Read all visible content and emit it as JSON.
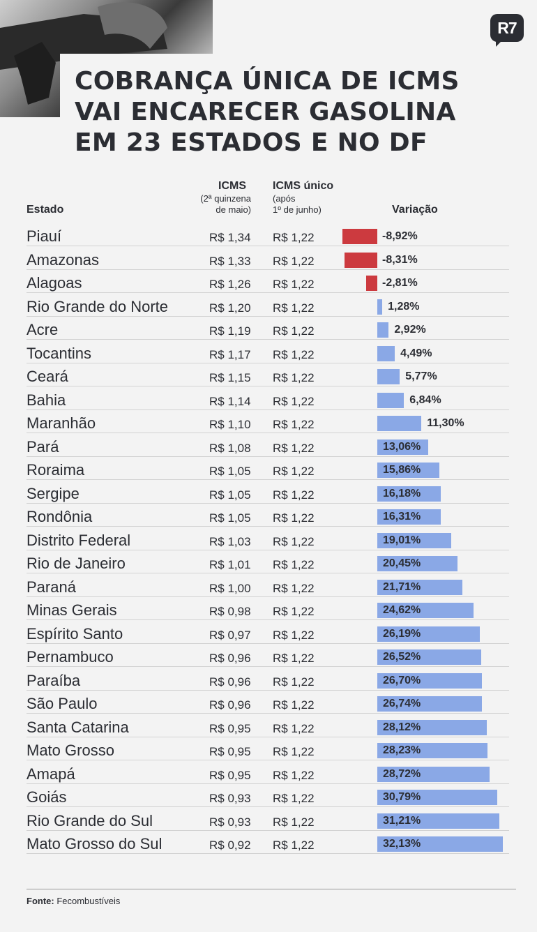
{
  "brand": {
    "logo_text": "R7"
  },
  "title": {
    "lines": [
      "COBRANÇA ÚNICA DE ICMS",
      "VAI ENCARECER GASOLINA",
      "EM 23 ESTADOS E NO DF"
    ]
  },
  "headers": {
    "estado": "Estado",
    "icms": "ICMS",
    "icms_sub1": "(2ª quinzena",
    "icms_sub2": "de maio)",
    "icms_unico": "ICMS único",
    "icms_unico_sub1": "(após",
    "icms_unico_sub2": "1º de junho)",
    "variacao": "Variação"
  },
  "colors": {
    "negative": "#cc3a3f",
    "positive": "#8aa8e6",
    "text": "#2b2d33"
  },
  "chart_data": {
    "type": "bar",
    "title": "COBRANÇA ÚNICA DE ICMS VAI ENCARECER GASOLINA EM 23 ESTADOS E NO DF",
    "columns": [
      "Estado",
      "ICMS (2ª quinzena de maio)",
      "ICMS único (após 1º de junho)",
      "Variação"
    ],
    "rows": [
      {
        "estado": "Piauí",
        "icms": "R$ 1,34",
        "icms_unico": "R$ 1,22",
        "label": "-8,92%",
        "value": -8.92
      },
      {
        "estado": "Amazonas",
        "icms": "R$ 1,33",
        "icms_unico": "R$ 1,22",
        "label": "-8,31%",
        "value": -8.31
      },
      {
        "estado": "Alagoas",
        "icms": "R$ 1,26",
        "icms_unico": "R$ 1,22",
        "label": "-2,81%",
        "value": -2.81
      },
      {
        "estado": "Rio Grande do Norte",
        "icms": "R$ 1,20",
        "icms_unico": "R$ 1,22",
        "label": "1,28%",
        "value": 1.28
      },
      {
        "estado": "Acre",
        "icms": "R$ 1,19",
        "icms_unico": "R$ 1,22",
        "label": "2,92%",
        "value": 2.92
      },
      {
        "estado": "Tocantins",
        "icms": "R$ 1,17",
        "icms_unico": "R$ 1,22",
        "label": "4,49%",
        "value": 4.49
      },
      {
        "estado": "Ceará",
        "icms": "R$ 1,15",
        "icms_unico": "R$ 1,22",
        "label": "5,77%",
        "value": 5.77
      },
      {
        "estado": "Bahia",
        "icms": "R$ 1,14",
        "icms_unico": "R$ 1,22",
        "label": "6,84%",
        "value": 6.84
      },
      {
        "estado": "Maranhão",
        "icms": "R$ 1,10",
        "icms_unico": "R$ 1,22",
        "label": "11,30%",
        "value": 11.3
      },
      {
        "estado": "Pará",
        "icms": "R$ 1,08",
        "icms_unico": "R$ 1,22",
        "label": "13,06%",
        "value": 13.06
      },
      {
        "estado": "Roraima",
        "icms": "R$ 1,05",
        "icms_unico": "R$ 1,22",
        "label": "15,86%",
        "value": 15.86
      },
      {
        "estado": "Sergipe",
        "icms": "R$ 1,05",
        "icms_unico": "R$ 1,22",
        "label": "16,18%",
        "value": 16.18
      },
      {
        "estado": "Rondônia",
        "icms": "R$ 1,05",
        "icms_unico": "R$ 1,22",
        "label": "16,31%",
        "value": 16.31
      },
      {
        "estado": "Distrito Federal",
        "icms": "R$ 1,03",
        "icms_unico": "R$ 1,22",
        "label": "19,01%",
        "value": 19.01
      },
      {
        "estado": "Rio de Janeiro",
        "icms": "R$ 1,01",
        "icms_unico": "R$ 1,22",
        "label": "20,45%",
        "value": 20.45
      },
      {
        "estado": "Paraná",
        "icms": "R$ 1,00",
        "icms_unico": "R$ 1,22",
        "label": "21,71%",
        "value": 21.71
      },
      {
        "estado": "Minas Gerais",
        "icms": "R$ 0,98",
        "icms_unico": "R$ 1,22",
        "label": "24,62%",
        "value": 24.62
      },
      {
        "estado": "Espírito Santo",
        "icms": "R$ 0,97",
        "icms_unico": "R$ 1,22",
        "label": "26,19%",
        "value": 26.19
      },
      {
        "estado": "Pernambuco",
        "icms": "R$ 0,96",
        "icms_unico": "R$ 1,22",
        "label": "26,52%",
        "value": 26.52
      },
      {
        "estado": "Paraíba",
        "icms": "R$ 0,96",
        "icms_unico": "R$ 1,22",
        "label": "26,70%",
        "value": 26.7
      },
      {
        "estado": "São Paulo",
        "icms": "R$ 0,96",
        "icms_unico": "R$ 1,22",
        "label": "26,74%",
        "value": 26.74
      },
      {
        "estado": "Santa Catarina",
        "icms": "R$ 0,95",
        "icms_unico": "R$ 1,22",
        "label": "28,12%",
        "value": 28.12
      },
      {
        "estado": "Mato Grosso",
        "icms": "R$ 0,95",
        "icms_unico": "R$ 1,22",
        "label": "28,23%",
        "value": 28.23
      },
      {
        "estado": "Amapá",
        "icms": "R$ 0,95",
        "icms_unico": "R$ 1,22",
        "label": "28,72%",
        "value": 28.72
      },
      {
        "estado": "Goiás",
        "icms": "R$ 0,93",
        "icms_unico": "R$ 1,22",
        "label": "30,79%",
        "value": 30.79
      },
      {
        "estado": "Rio Grande do Sul",
        "icms": "R$ 0,93",
        "icms_unico": "R$ 1,22",
        "label": "31,21%",
        "value": 31.21
      },
      {
        "estado": "Mato Grosso do Sul",
        "icms": "R$ 0,92",
        "icms_unico": "R$ 1,22",
        "label": "32,13%",
        "value": 32.13
      }
    ]
  },
  "footer": {
    "source_label": "Fonte:",
    "source_value": " Fecombustíveis"
  }
}
